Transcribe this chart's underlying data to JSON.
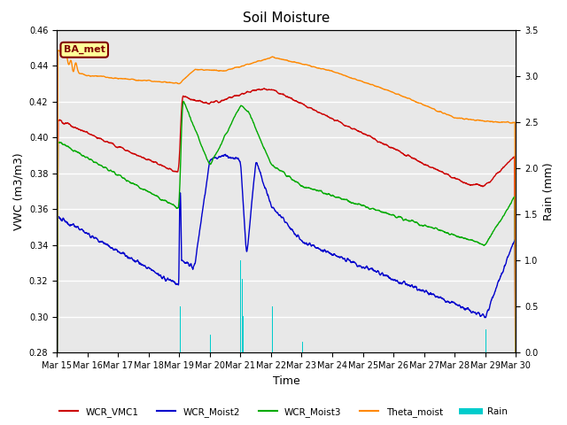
{
  "title": "Soil Moisture",
  "xlabel": "Time",
  "ylabel_left": "VWC (m3/m3)",
  "ylabel_right": "Rain (mm)",
  "ylim_left": [
    0.28,
    0.46
  ],
  "ylim_right": [
    0.0,
    3.5
  ],
  "xtick_labels": [
    "Mar 15",
    "Mar 16",
    "Mar 17",
    "Mar 18",
    "Mar 19",
    "Mar 20",
    "Mar 21",
    "Mar 22",
    "Mar 23",
    "Mar 24",
    "Mar 25",
    "Mar 26",
    "Mar 27",
    "Mar 28",
    "Mar 29",
    "Mar 30"
  ],
  "legend_labels": [
    "WCR_VMC1",
    "WCR_Moist2",
    "WCR_Moist3",
    "Theta_moist",
    "Rain"
  ],
  "line_colors": {
    "WCR_VMC1": "#cc0000",
    "WCR_Moist2": "#0000cc",
    "WCR_Moist3": "#00aa00",
    "Theta_moist": "#ff8800",
    "Rain": "#00cccc"
  },
  "background_color": "#ffffff",
  "plot_bg_color": "#e8e8e8",
  "grid_color": "#ffffff",
  "annotation_text": "BA_met",
  "annotation_box_color": "#ffff99",
  "annotation_border_color": "#800000",
  "title_fontsize": 11,
  "axis_fontsize": 9,
  "tick_fontsize": 7
}
